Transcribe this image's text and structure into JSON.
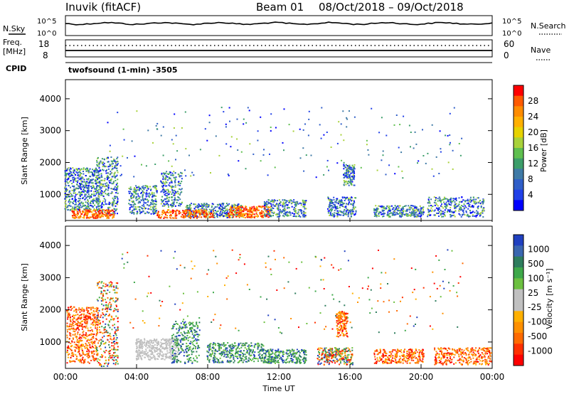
{
  "header": {
    "station": "Inuvik (fitACF)",
    "beam": "Beam 01",
    "date_range": "08/Oct/2018 – 09/Oct/2018"
  },
  "top_panels": {
    "nsky_label": "N.Sky",
    "nsky_hi": "10^5",
    "nsky_lo": "10^0",
    "nsearch_label": "N.Search",
    "nsearch_hi": "10^5",
    "nsearch_lo": "10^0",
    "freq_label": "Freq.",
    "freq_unit": "[MHz]",
    "freq_hi": "18",
    "freq_lo": "8",
    "nave_label": "Nave",
    "nave_hi": "60",
    "nave_lo": "0",
    "cpid_label": "CPID",
    "cpid_text": "twofsound (1-min) -3505"
  },
  "chart_data": [
    {
      "type": "heatmap",
      "quantity": "Power",
      "ylabel": "Slant Range [km]",
      "ylim": [
        180,
        4600
      ],
      "yticks": [
        1000,
        2000,
        3000,
        4000
      ],
      "colorbar_label": "Power [dB]",
      "colorbar_ticks": [
        "28",
        "24",
        "20",
        "16",
        "12",
        "8",
        "4"
      ],
      "colorbar_colors": [
        "#ff0000",
        "#ff5a00",
        "#ff8c00",
        "#ffb000",
        "#e6d200",
        "#a8d23a",
        "#5fbf4f",
        "#3c9e6a",
        "#3f7aa6",
        "#2f5ec8",
        "#2040e8",
        "#0000ff"
      ]
    },
    {
      "type": "heatmap",
      "quantity": "Velocity",
      "ylabel": "Slant Range [km]",
      "xlabel": "Time UT",
      "ylim": [
        180,
        4600
      ],
      "yticks": [
        1000,
        2000,
        3000,
        4000
      ],
      "xticks": [
        "00:00",
        "04:00",
        "08:00",
        "12:00",
        "16:00",
        "20:00",
        "00:00"
      ],
      "colorbar_label": "Velocity [m s⁻¹]",
      "colorbar_ticks": [
        "1000",
        "500",
        "100",
        "25",
        "-25",
        "-100",
        "-500",
        "-1000"
      ],
      "colorbar_colors": [
        "#2040c0",
        "#3a66b0",
        "#2e7d5e",
        "#3ea84a",
        "#6cc040",
        "#c0c0c0",
        "#c0c0c0",
        "#ffb000",
        "#ff9000",
        "#ff6a00",
        "#ff3000",
        "#ff0000"
      ]
    }
  ]
}
